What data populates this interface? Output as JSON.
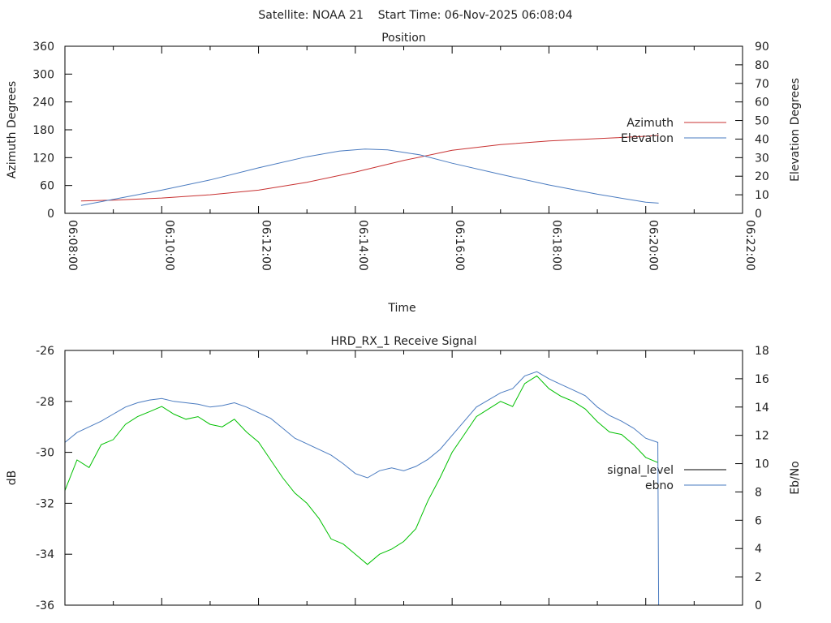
{
  "header": {
    "title": "Satellite: NOAA 21    Start Time: 06-Nov-2025 06:08:04"
  },
  "chart_data": [
    {
      "type": "line",
      "title": "Position",
      "xlabel": "Time",
      "ylabel": "Azimuth Degrees",
      "y2label": "Elevation Degrees",
      "x_unit": "seconds after 06:08:00",
      "xlim": [
        0,
        840
      ],
      "ylim": [
        0,
        360
      ],
      "y2lim": [
        0,
        90
      ],
      "xticks": [
        "06:08:00",
        "06:10:00",
        "06:12:00",
        "06:14:00",
        "06:16:00",
        "06:18:00",
        "06:20:00",
        "06:22:00"
      ],
      "yticks": [
        "0",
        "60",
        "120",
        "180",
        "240",
        "300",
        "360"
      ],
      "y2ticks": [
        "0",
        "10",
        "20",
        "30",
        "40",
        "50",
        "60",
        "70",
        "80",
        "90"
      ],
      "legend_position": "right",
      "series": [
        {
          "name": "Azimuth",
          "axis": "y",
          "color": "#c83232",
          "x": [
            20,
            60,
            120,
            180,
            240,
            300,
            360,
            420,
            480,
            540,
            600,
            660,
            720,
            736
          ],
          "y": [
            26.5,
            28.5,
            33,
            40,
            50,
            67,
            89,
            114,
            136,
            148,
            156,
            161,
            166,
            168
          ]
        },
        {
          "name": "Elevation",
          "axis": "y2",
          "color": "#4a7bc0",
          "x": [
            20,
            60,
            120,
            180,
            240,
            300,
            340,
            372,
            400,
            440,
            480,
            540,
            600,
            660,
            720,
            736
          ],
          "y": [
            4.3,
            7.5,
            12.5,
            18,
            24.5,
            30.5,
            33.5,
            34.6,
            34.2,
            31.5,
            27,
            21,
            15.3,
            10.3,
            6,
            5.5
          ]
        }
      ]
    },
    {
      "type": "line",
      "title": "HRD_RX_1 Receive Signal",
      "xlabel": "",
      "ylabel": "dB",
      "y2label": "Eb/No",
      "x_unit": "seconds after 06:08:00",
      "xlim": [
        0,
        840
      ],
      "ylim": [
        -36,
        -26
      ],
      "y2lim": [
        0,
        18
      ],
      "yticks": [
        "-36",
        "-34",
        "-32",
        "-30",
        "-28",
        "-26"
      ],
      "y2ticks": [
        "0",
        "2",
        "4",
        "6",
        "8",
        "10",
        "12",
        "14",
        "16",
        "18"
      ],
      "legend_position": "right",
      "series": [
        {
          "name": "signal_level",
          "axis": "y",
          "color": "#00c000",
          "legend_color": "#000000",
          "x": [
            0,
            15,
            30,
            45,
            60,
            75,
            90,
            105,
            120,
            135,
            150,
            165,
            180,
            195,
            210,
            225,
            240,
            255,
            270,
            285,
            300,
            315,
            330,
            345,
            360,
            375,
            390,
            405,
            420,
            435,
            450,
            465,
            480,
            495,
            510,
            525,
            540,
            555,
            570,
            585,
            600,
            615,
            630,
            645,
            660,
            675,
            690,
            705,
            720,
            735
          ],
          "y": [
            -31.5,
            -30.3,
            -30.6,
            -29.7,
            -29.5,
            -28.9,
            -28.6,
            -28.4,
            -28.2,
            -28.5,
            -28.7,
            -28.6,
            -28.9,
            -29.0,
            -28.7,
            -29.2,
            -29.6,
            -30.3,
            -31.0,
            -31.6,
            -32.0,
            -32.6,
            -33.4,
            -33.6,
            -34.0,
            -34.4,
            -34.0,
            -33.8,
            -33.5,
            -33.0,
            -31.9,
            -31.0,
            -30.0,
            -29.3,
            -28.6,
            -28.3,
            -28.0,
            -28.2,
            -27.3,
            -27.0,
            -27.5,
            -27.8,
            -28.0,
            -28.3,
            -28.8,
            -29.2,
            -29.3,
            -29.7,
            -30.2,
            -30.4
          ]
        },
        {
          "name": "ebno",
          "axis": "y2",
          "color": "#4a7bc0",
          "legend_color": "#4a7bc0",
          "x": [
            0,
            15,
            30,
            45,
            60,
            75,
            90,
            105,
            120,
            135,
            150,
            165,
            180,
            195,
            210,
            225,
            240,
            255,
            270,
            285,
            300,
            315,
            330,
            345,
            360,
            375,
            390,
            405,
            420,
            435,
            450,
            465,
            480,
            495,
            510,
            525,
            540,
            555,
            570,
            585,
            600,
            615,
            630,
            645,
            660,
            675,
            690,
            705,
            720,
            735,
            736
          ],
          "y": [
            11.5,
            12.2,
            12.6,
            13.0,
            13.5,
            14.0,
            14.3,
            14.5,
            14.6,
            14.4,
            14.3,
            14.2,
            14.0,
            14.1,
            14.3,
            14.0,
            13.6,
            13.2,
            12.5,
            11.8,
            11.4,
            11.0,
            10.6,
            10.0,
            9.3,
            9.0,
            9.5,
            9.7,
            9.5,
            9.8,
            10.3,
            11.0,
            12.0,
            13.0,
            14.0,
            14.5,
            15.0,
            15.3,
            16.2,
            16.5,
            16.0,
            15.6,
            15.2,
            14.8,
            14.0,
            13.4,
            13.0,
            12.5,
            11.8,
            11.5,
            0
          ]
        }
      ]
    }
  ]
}
